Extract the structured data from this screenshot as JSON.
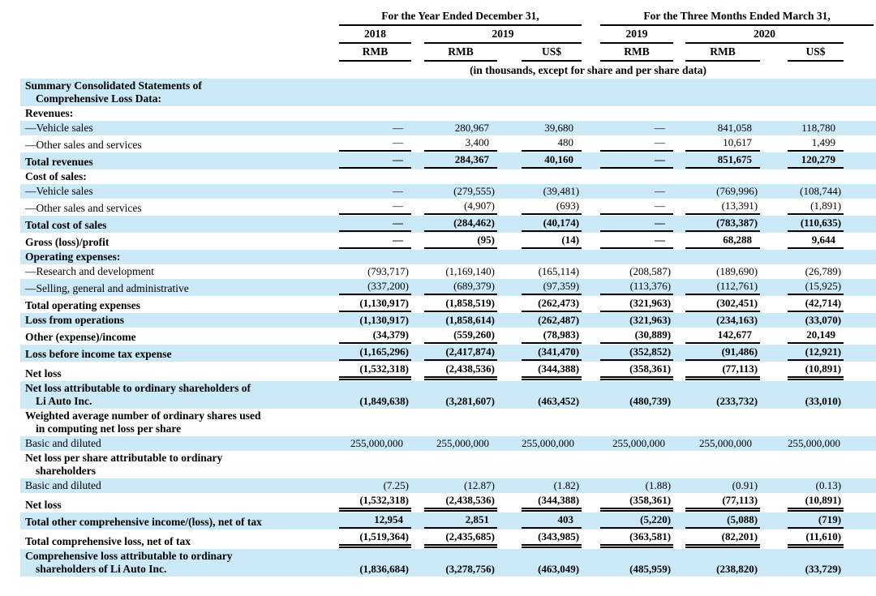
{
  "colors": {
    "row_highlight": "#cce9f8",
    "text": "#000000",
    "rule": "#000000"
  },
  "header": {
    "group1": "For the Year Ended December 31,",
    "group2": "For the Three Months Ended March 31,",
    "years": [
      "2018",
      "2019",
      "2019",
      "2020"
    ],
    "currencies": [
      "RMB",
      "RMB",
      "US$",
      "RMB",
      "RMB",
      "US$"
    ],
    "note": "(in thousands, except for share and per share data)"
  },
  "table": {
    "rows": [
      {
        "lines": [
          "Summary Consolidated Statements of",
          "Comprehensive Loss Data:"
        ],
        "bold": true,
        "shaded": true,
        "rule": "none",
        "values": null
      },
      {
        "lines": [
          "Revenues:"
        ],
        "bold": true,
        "shaded": false,
        "rule": "none",
        "values": null
      },
      {
        "lines": [
          "—Vehicle sales"
        ],
        "bold": false,
        "shaded": true,
        "rule": "none",
        "values": [
          "—",
          "280,967",
          "39,680",
          "—",
          "841,058",
          "118,780"
        ]
      },
      {
        "lines": [
          "—Other sales and services"
        ],
        "bold": false,
        "shaded": false,
        "rule": "single",
        "values": [
          "—",
          "3,400",
          "480",
          "—",
          "10,617",
          "1,499"
        ]
      },
      {
        "lines": [
          "Total revenues"
        ],
        "bold": true,
        "shaded": true,
        "rule": "single",
        "values": [
          "—",
          "284,367",
          "40,160",
          "—",
          "851,675",
          "120,279"
        ]
      },
      {
        "lines": [
          "Cost of sales:"
        ],
        "bold": true,
        "shaded": false,
        "rule": "none",
        "values": null
      },
      {
        "lines": [
          "—Vehicle sales"
        ],
        "bold": false,
        "shaded": true,
        "rule": "none",
        "values": [
          "—",
          "(279,555)",
          "(39,481)",
          "—",
          "(769,996)",
          "(108,744)"
        ]
      },
      {
        "lines": [
          "—Other sales and services"
        ],
        "bold": false,
        "shaded": false,
        "rule": "single",
        "values": [
          "—",
          "(4,907)",
          "(693)",
          "—",
          "(13,391)",
          "(1,891)"
        ]
      },
      {
        "lines": [
          "Total cost of sales"
        ],
        "bold": true,
        "shaded": true,
        "rule": "single",
        "values": [
          "—",
          "(284,462)",
          "(40,174)",
          "—",
          "(783,387)",
          "(110,635)"
        ]
      },
      {
        "lines": [
          "Gross (loss)/profit"
        ],
        "bold": true,
        "shaded": false,
        "rule": "single",
        "values": [
          "—",
          "(95)",
          "(14)",
          "—",
          "68,288",
          "9,644"
        ]
      },
      {
        "lines": [
          "Operating expenses:"
        ],
        "bold": true,
        "shaded": true,
        "rule": "none",
        "values": null
      },
      {
        "lines": [
          "—Research and development"
        ],
        "bold": false,
        "shaded": false,
        "rule": "none",
        "values": [
          "(793,717)",
          "(1,169,140)",
          "(165,114)",
          "(208,587)",
          "(189,690)",
          "(26,789)"
        ]
      },
      {
        "lines": [
          "—Selling, general and administrative"
        ],
        "bold": false,
        "shaded": true,
        "rule": "single",
        "values": [
          "(337,200)",
          "(689,379)",
          "(97,359)",
          "(113,376)",
          "(112,761)",
          "(15,925)"
        ]
      },
      {
        "lines": [
          "Total operating expenses"
        ],
        "bold": true,
        "shaded": false,
        "rule": "single",
        "values": [
          "(1,130,917)",
          "(1,858,519)",
          "(262,473)",
          "(321,963)",
          "(302,451)",
          "(42,714)"
        ]
      },
      {
        "lines": [
          "Loss from operations"
        ],
        "bold": true,
        "shaded": true,
        "rule": "none",
        "values": [
          "(1,130,917)",
          "(1,858,614)",
          "(262,487)",
          "(321,963)",
          "(234,163)",
          "(33,070)"
        ]
      },
      {
        "lines": [
          "Other (expense)/income"
        ],
        "bold": true,
        "shaded": false,
        "rule": "single",
        "values": [
          "(34,379)",
          "(559,260)",
          "(78,983)",
          "(30,889)",
          "142,677",
          "20,149"
        ]
      },
      {
        "lines": [
          "Loss before income tax expense"
        ],
        "bold": true,
        "shaded": true,
        "rule": "single",
        "values": [
          "(1,165,296)",
          "(2,417,874)",
          "(341,470)",
          "(352,852)",
          "(91,486)",
          "(12,921)"
        ]
      },
      {
        "lines": [
          "Net loss"
        ],
        "bold": true,
        "shaded": false,
        "rule": "double",
        "values": [
          "(1,532,318)",
          "(2,438,536)",
          "(344,388)",
          "(358,361)",
          "(77,113)",
          "(10,891)"
        ]
      },
      {
        "lines": [
          "Net loss attributable to ordinary shareholders of",
          "Li Auto Inc."
        ],
        "bold": true,
        "shaded": true,
        "rule": "none",
        "values": [
          "(1,849,638)",
          "(3,281,607)",
          "(463,452)",
          "(480,739)",
          "(233,732)",
          "(33,010)"
        ]
      },
      {
        "lines": [
          "Weighted average number of ordinary shares used",
          "in computing net loss per share"
        ],
        "bold": true,
        "shaded": false,
        "rule": "none",
        "values": null
      },
      {
        "lines": [
          "Basic and diluted"
        ],
        "bold": false,
        "shaded": true,
        "rule": "none",
        "values": [
          "255,000,000",
          "255,000,000",
          "255,000,000",
          "255,000,000",
          "255,000,000",
          "255,000,000"
        ]
      },
      {
        "lines": [
          "Net loss per share attributable to ordinary",
          "shareholders"
        ],
        "bold": true,
        "shaded": false,
        "rule": "none",
        "values": null
      },
      {
        "lines": [
          "Basic and diluted"
        ],
        "bold": false,
        "shaded": true,
        "rule": "none",
        "values": [
          "(7.25)",
          "(12.87)",
          "(1.82)",
          "(1.88)",
          "(0.91)",
          "(0.13)"
        ]
      },
      {
        "lines": [
          "Net loss"
        ],
        "bold": true,
        "shaded": false,
        "rule": "double",
        "values": [
          "(1,532,318)",
          "(2,438,536)",
          "(344,388)",
          "(358,361)",
          "(77,113)",
          "(10,891)"
        ]
      },
      {
        "lines": [
          "Total other comprehensive income/(loss), net of tax"
        ],
        "bold": true,
        "shaded": true,
        "rule": "single",
        "values": [
          "12,954",
          "2,851",
          "403",
          "(5,220)",
          "(5,088)",
          "(719)"
        ]
      },
      {
        "lines": [
          "Total comprehensive loss, net of tax"
        ],
        "bold": true,
        "shaded": false,
        "rule": "double",
        "values": [
          "(1,519,364)",
          "(2,435,685)",
          "(343,985)",
          "(363,581)",
          "(82,201)",
          "(11,610)"
        ]
      },
      {
        "lines": [
          "Comprehensive loss attributable to ordinary",
          "shareholders of Li Auto Inc."
        ],
        "bold": true,
        "shaded": true,
        "rule": "none",
        "values": [
          "(1,836,684)",
          "(3,278,756)",
          "(463,049)",
          "(485,959)",
          "(238,820)",
          "(33,729)"
        ]
      }
    ]
  }
}
